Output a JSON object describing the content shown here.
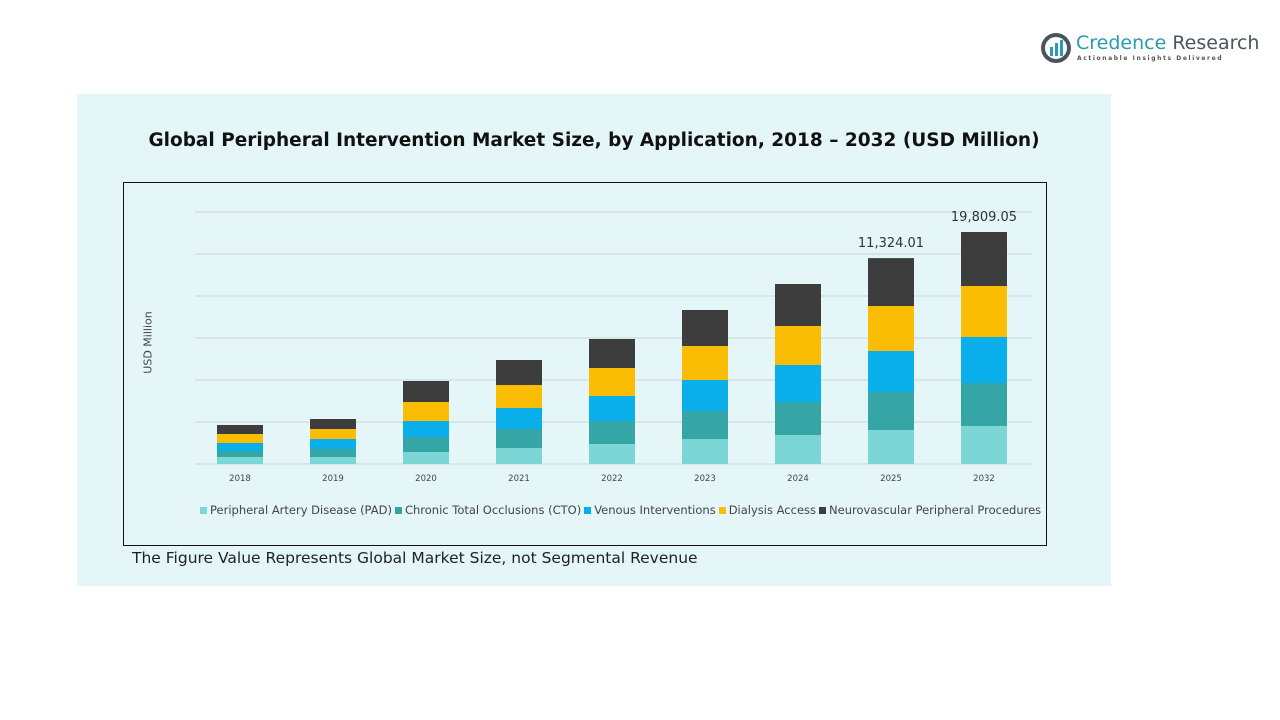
{
  "logo": {
    "name_part1": "Credence",
    "name_part2": " Research",
    "tagline": "Actionable Insights Delivered"
  },
  "footnote": "The Figure Value Represents Global Market Size, not Segmental Revenue",
  "chart_data": {
    "type": "bar",
    "stacked": true,
    "title": "Global Peripheral Intervention Market Size, by Application, 2018 – 2032 (USD Million)",
    "xlabel": "",
    "ylabel": "USD Million",
    "categories": [
      "2018",
      "2019",
      "2020",
      "2021",
      "2022",
      "2023",
      "2024",
      "2025",
      "2032"
    ],
    "ylim": [
      0,
      13860
    ],
    "grid": true,
    "legend": "bottom",
    "series": [
      {
        "name": "Peripheral Artery Disease (PAD)",
        "color": "#7dd6d6",
        "values": [
          385,
          385,
          660,
          880,
          1100,
          1375,
          1595,
          1870,
          2090
        ]
      },
      {
        "name": "Chronic Total Occlusions (CTO)",
        "color": "#35a5a5",
        "values": [
          330,
          440,
          825,
          1045,
          1265,
          1540,
          1815,
          2090,
          2365
        ]
      },
      {
        "name": "Venous Interventions",
        "color": "#0aaeea",
        "values": [
          440,
          550,
          880,
          1155,
          1375,
          1705,
          2035,
          2255,
          2530
        ]
      },
      {
        "name": "Dialysis Access",
        "color": "#fbbd04",
        "values": [
          495,
          550,
          1045,
          1265,
          1540,
          1870,
          2145,
          2475,
          2805
        ]
      },
      {
        "name": "Neurovascular Peripheral Procedures",
        "color": "#3d3d3d",
        "values": [
          495,
          550,
          1155,
          1375,
          1595,
          1980,
          2310,
          2634,
          2970
        ]
      }
    ],
    "data_labels": [
      {
        "category": "2025",
        "text": "11,324.01"
      },
      {
        "category": "2032",
        "text": "19,809.05"
      }
    ]
  }
}
